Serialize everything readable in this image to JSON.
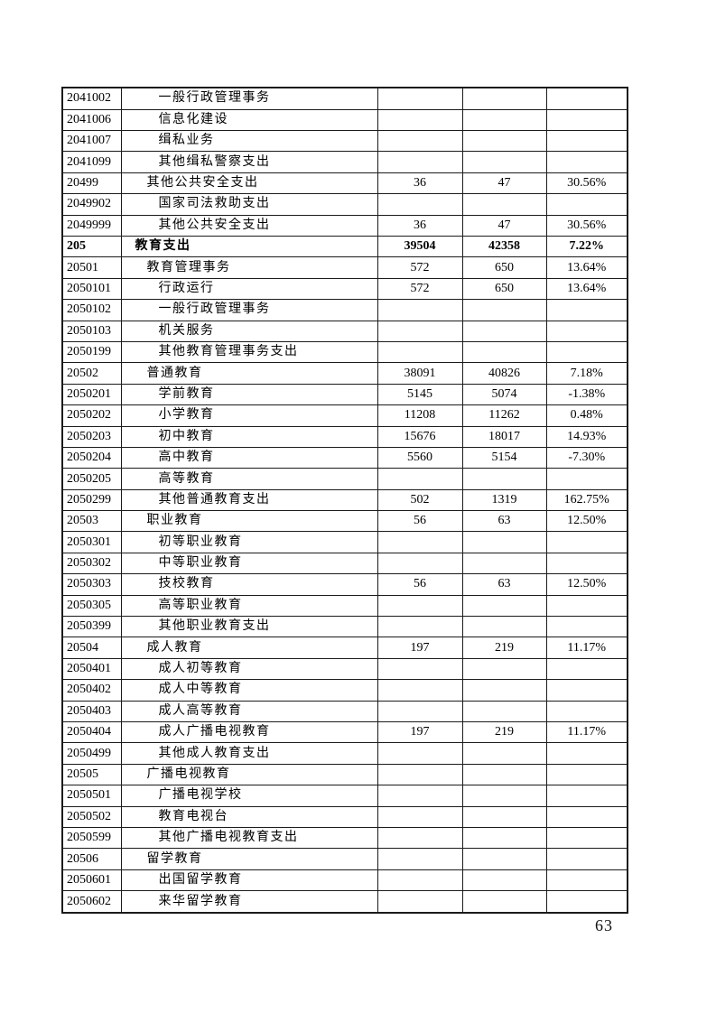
{
  "page": {
    "number": "63"
  },
  "table": {
    "columns": [
      "code",
      "name",
      "budget",
      "actual",
      "pct"
    ],
    "rows": [
      {
        "code": "2041002",
        "name": "一般行政管理事务",
        "level": 2,
        "bold": false,
        "v1": "",
        "v2": "",
        "pct": ""
      },
      {
        "code": "2041006",
        "name": "信息化建设",
        "level": 2,
        "bold": false,
        "v1": "",
        "v2": "",
        "pct": ""
      },
      {
        "code": "2041007",
        "name": "缉私业务",
        "level": 2,
        "bold": false,
        "v1": "",
        "v2": "",
        "pct": ""
      },
      {
        "code": "2041099",
        "name": "其他缉私警察支出",
        "level": 2,
        "bold": false,
        "v1": "",
        "v2": "",
        "pct": ""
      },
      {
        "code": "20499",
        "name": "其他公共安全支出",
        "level": 1,
        "bold": false,
        "v1": "36",
        "v2": "47",
        "pct": "30.56%"
      },
      {
        "code": "2049902",
        "name": "国家司法救助支出",
        "level": 2,
        "bold": false,
        "v1": "",
        "v2": "",
        "pct": ""
      },
      {
        "code": "2049999",
        "name": "其他公共安全支出",
        "level": 2,
        "bold": false,
        "v1": "36",
        "v2": "47",
        "pct": "30.56%"
      },
      {
        "code": "205",
        "name": "教育支出",
        "level": 0,
        "bold": true,
        "v1": "39504",
        "v2": "42358",
        "pct": "7.22%"
      },
      {
        "code": "20501",
        "name": "教育管理事务",
        "level": 1,
        "bold": false,
        "v1": "572",
        "v2": "650",
        "pct": "13.64%"
      },
      {
        "code": "2050101",
        "name": "行政运行",
        "level": 2,
        "bold": false,
        "v1": "572",
        "v2": "650",
        "pct": "13.64%"
      },
      {
        "code": "2050102",
        "name": "一般行政管理事务",
        "level": 2,
        "bold": false,
        "v1": "",
        "v2": "",
        "pct": ""
      },
      {
        "code": "2050103",
        "name": "机关服务",
        "level": 2,
        "bold": false,
        "v1": "",
        "v2": "",
        "pct": ""
      },
      {
        "code": "2050199",
        "name": "其他教育管理事务支出",
        "level": 2,
        "bold": false,
        "v1": "",
        "v2": "",
        "pct": ""
      },
      {
        "code": "20502",
        "name": "普通教育",
        "level": 1,
        "bold": false,
        "v1": "38091",
        "v2": "40826",
        "pct": "7.18%"
      },
      {
        "code": "2050201",
        "name": "学前教育",
        "level": 2,
        "bold": false,
        "v1": "5145",
        "v2": "5074",
        "pct": "-1.38%"
      },
      {
        "code": "2050202",
        "name": "小学教育",
        "level": 2,
        "bold": false,
        "v1": "11208",
        "v2": "11262",
        "pct": "0.48%"
      },
      {
        "code": "2050203",
        "name": "初中教育",
        "level": 2,
        "bold": false,
        "v1": "15676",
        "v2": "18017",
        "pct": "14.93%"
      },
      {
        "code": "2050204",
        "name": "高中教育",
        "level": 2,
        "bold": false,
        "v1": "5560",
        "v2": "5154",
        "pct": "-7.30%"
      },
      {
        "code": "2050205",
        "name": "高等教育",
        "level": 2,
        "bold": false,
        "v1": "",
        "v2": "",
        "pct": ""
      },
      {
        "code": "2050299",
        "name": "其他普通教育支出",
        "level": 2,
        "bold": false,
        "v1": "502",
        "v2": "1319",
        "pct": "162.75%"
      },
      {
        "code": "20503",
        "name": "职业教育",
        "level": 1,
        "bold": false,
        "v1": "56",
        "v2": "63",
        "pct": "12.50%"
      },
      {
        "code": "2050301",
        "name": "初等职业教育",
        "level": 2,
        "bold": false,
        "v1": "",
        "v2": "",
        "pct": ""
      },
      {
        "code": "2050302",
        "name": "中等职业教育",
        "level": 2,
        "bold": false,
        "v1": "",
        "v2": "",
        "pct": ""
      },
      {
        "code": "2050303",
        "name": "技校教育",
        "level": 2,
        "bold": false,
        "v1": "56",
        "v2": "63",
        "pct": "12.50%"
      },
      {
        "code": "2050305",
        "name": "高等职业教育",
        "level": 2,
        "bold": false,
        "v1": "",
        "v2": "",
        "pct": ""
      },
      {
        "code": "2050399",
        "name": "其他职业教育支出",
        "level": 2,
        "bold": false,
        "v1": "",
        "v2": "",
        "pct": ""
      },
      {
        "code": "20504",
        "name": "成人教育",
        "level": 1,
        "bold": false,
        "v1": "197",
        "v2": "219",
        "pct": "11.17%"
      },
      {
        "code": "2050401",
        "name": "成人初等教育",
        "level": 2,
        "bold": false,
        "v1": "",
        "v2": "",
        "pct": ""
      },
      {
        "code": "2050402",
        "name": "成人中等教育",
        "level": 2,
        "bold": false,
        "v1": "",
        "v2": "",
        "pct": ""
      },
      {
        "code": "2050403",
        "name": "成人高等教育",
        "level": 2,
        "bold": false,
        "v1": "",
        "v2": "",
        "pct": ""
      },
      {
        "code": "2050404",
        "name": "成人广播电视教育",
        "level": 2,
        "bold": false,
        "v1": "197",
        "v2": "219",
        "pct": "11.17%"
      },
      {
        "code": "2050499",
        "name": "其他成人教育支出",
        "level": 2,
        "bold": false,
        "v1": "",
        "v2": "",
        "pct": ""
      },
      {
        "code": "20505",
        "name": "广播电视教育",
        "level": 1,
        "bold": false,
        "v1": "",
        "v2": "",
        "pct": ""
      },
      {
        "code": "2050501",
        "name": "广播电视学校",
        "level": 2,
        "bold": false,
        "v1": "",
        "v2": "",
        "pct": ""
      },
      {
        "code": "2050502",
        "name": "教育电视台",
        "level": 2,
        "bold": false,
        "v1": "",
        "v2": "",
        "pct": ""
      },
      {
        "code": "2050599",
        "name": "其他广播电视教育支出",
        "level": 2,
        "bold": false,
        "v1": "",
        "v2": "",
        "pct": ""
      },
      {
        "code": "20506",
        "name": "留学教育",
        "level": 1,
        "bold": false,
        "v1": "",
        "v2": "",
        "pct": ""
      },
      {
        "code": "2050601",
        "name": "出国留学教育",
        "level": 2,
        "bold": false,
        "v1": "",
        "v2": "",
        "pct": ""
      },
      {
        "code": "2050602",
        "name": "来华留学教育",
        "level": 2,
        "bold": false,
        "v1": "",
        "v2": "",
        "pct": ""
      }
    ]
  }
}
